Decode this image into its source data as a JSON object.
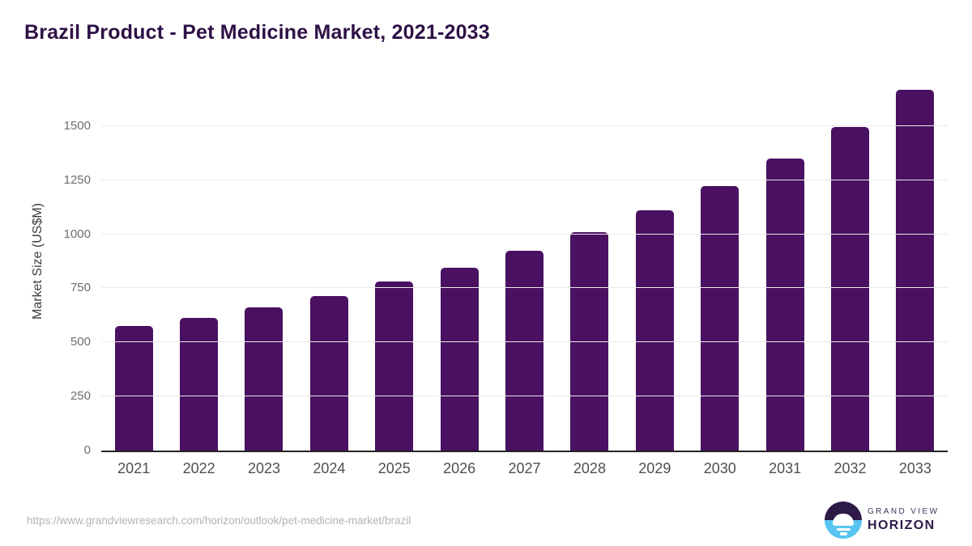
{
  "header": {
    "title": "Brazil Product - Pet Medicine Market, 2021-2033"
  },
  "chart_data": {
    "type": "bar",
    "title": "Brazil Product - Pet Medicine Market, 2021-2033",
    "categories": [
      "2021",
      "2022",
      "2023",
      "2024",
      "2025",
      "2026",
      "2027",
      "2028",
      "2029",
      "2030",
      "2031",
      "2032",
      "2033"
    ],
    "values": [
      575,
      615,
      661,
      716,
      780,
      844,
      923,
      1009,
      1110,
      1224,
      1350,
      1495,
      1667
    ],
    "xlabel": "",
    "ylabel": "Market Size (US$M)",
    "ylim": [
      0,
      1750
    ],
    "yticks": [
      0,
      250,
      500,
      750,
      1000,
      1250,
      1500
    ],
    "grid": "horizontal-only",
    "legend_position": "none",
    "bar_color": "#4a1061"
  },
  "footer": {
    "source_url": "https://www.grandviewresearch.com/horizon/outlook/pet-medicine-market/brazil",
    "logo": {
      "mark_icon": "horizon-sun-circle-icon",
      "brand_top": "GRAND VIEW",
      "brand_bottom": "HORIZON"
    }
  },
  "colors": {
    "title_text": "#2e1045",
    "bar_fill": "#4a1061",
    "axis_baseline": "#232323",
    "gridline": "#e9e9e9",
    "y_tick_text": "#6e6e6e",
    "x_tick_text": "#4f4f4f",
    "source_url_text": "#b3b3b3",
    "logo_purple": "#2e1a47",
    "logo_blue": "#58c4f0"
  }
}
